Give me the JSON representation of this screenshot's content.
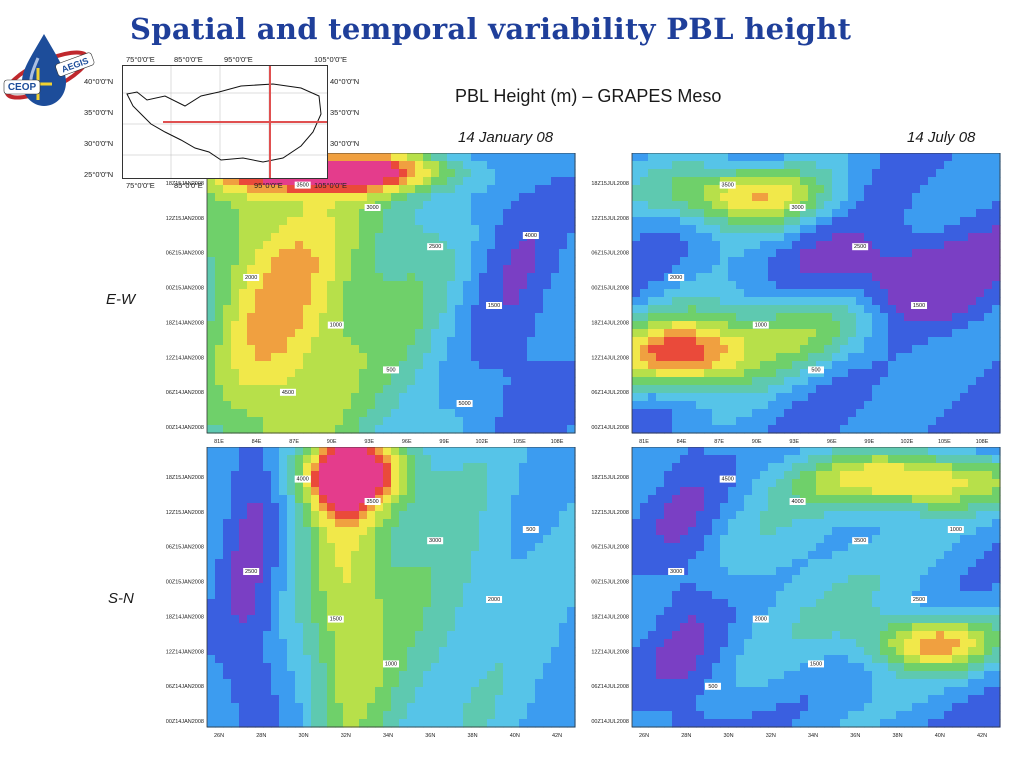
{
  "slide": {
    "title": "Spatial and temporal variability PBL height",
    "subtitle": "PBL Height (m) – GRAPES Meso",
    "columns": [
      "14 January 08",
      "14 July 08"
    ],
    "rows": [
      "E-W",
      "S-N"
    ],
    "logo": {
      "text_left": "CEOP",
      "text_right": "AEGIS"
    }
  },
  "map_inset": {
    "top_ticks": [
      "75°0'0\"E",
      "85°0'0\"E",
      "95°0'0\"E",
      "105°0'0\"E"
    ],
    "bottom_ticks": [
      "75°0'0\"E",
      "85°0'0\"E",
      "95°0'0\"E",
      "105°0'0\"E"
    ],
    "left_ticks": [
      "40°0'0\"N",
      "35°0'0\"N",
      "30°0'0\"N",
      "25°0'0\"N"
    ],
    "right_ticks": [
      "40°0'0\"N",
      "35°0'0\"N",
      "30°0'0\"N"
    ],
    "line_color": "#e05050"
  },
  "colors": {
    "title": "#1f3f9a",
    "levels": [
      "#7a3fc4",
      "#3a5fe0",
      "#3c9cf0",
      "#56c4e8",
      "#5ec9b0",
      "#6fd06a",
      "#b7e04a",
      "#f1e84a",
      "#f0a040",
      "#ea4a3a",
      "#e43c8c"
    ]
  },
  "chart_data": [
    {
      "type": "heatmap",
      "panel": "E-W, 14 January 08",
      "x_ticks": [
        "81E",
        "84E",
        "87E",
        "90E",
        "93E",
        "96E",
        "99E",
        "102E",
        "105E",
        "108E"
      ],
      "y_ticks": [
        "18Z15JAN2008",
        "12Z15JAN2008",
        "06Z15JAN2008",
        "00Z15JAN2008",
        "18Z14JAN2008",
        "12Z14JAN2008",
        "06Z14JAN2008",
        "00Z14JAN2008"
      ],
      "contour_labels": [
        "3500",
        "3000",
        "2500",
        "2000",
        "1500",
        "1000",
        "500",
        "4000",
        "4500",
        "5000"
      ]
    },
    {
      "type": "heatmap",
      "panel": "E-W, 14 July 08",
      "x_ticks": [
        "81E",
        "84E",
        "87E",
        "90E",
        "93E",
        "96E",
        "99E",
        "102E",
        "105E",
        "108E"
      ],
      "y_ticks": [
        "18Z15JUL2008",
        "12Z15JUL2008",
        "06Z15JUL2008",
        "00Z15JUL2008",
        "18Z14JUL2008",
        "12Z14JUL2008",
        "06Z14JUL2008",
        "00Z14JUL2008"
      ],
      "contour_labels": [
        "3500",
        "3000",
        "2500",
        "2000",
        "1500",
        "1000",
        "500"
      ]
    },
    {
      "type": "heatmap",
      "panel": "S-N, 14 January 08",
      "x_ticks": [
        "26N",
        "28N",
        "30N",
        "32N",
        "34N",
        "36N",
        "38N",
        "40N",
        "42N"
      ],
      "y_ticks": [
        "18Z15JAN2008",
        "12Z15JAN2008",
        "06Z15JAN2008",
        "00Z15JAN2008",
        "18Z14JAN2008",
        "12Z14JAN2008",
        "06Z14JAN2008",
        "00Z14JAN2008"
      ],
      "contour_labels": [
        "4000",
        "3500",
        "3000",
        "2500",
        "2000",
        "1500",
        "1000",
        "500"
      ]
    },
    {
      "type": "heatmap",
      "panel": "S-N, 14 July 08",
      "x_ticks": [
        "26N",
        "28N",
        "30N",
        "32N",
        "34N",
        "36N",
        "38N",
        "40N",
        "42N"
      ],
      "y_ticks": [
        "18Z15JUL2008",
        "12Z15JUL2008",
        "06Z15JUL2008",
        "00Z15JUL2008",
        "18Z14JUL2008",
        "12Z14JUL2008",
        "06Z14JUL2008",
        "00Z14JUL2008"
      ],
      "contour_labels": [
        "4500",
        "4000",
        "3500",
        "3000",
        "2500",
        "2000",
        "1500",
        "1000",
        "500"
      ]
    }
  ]
}
